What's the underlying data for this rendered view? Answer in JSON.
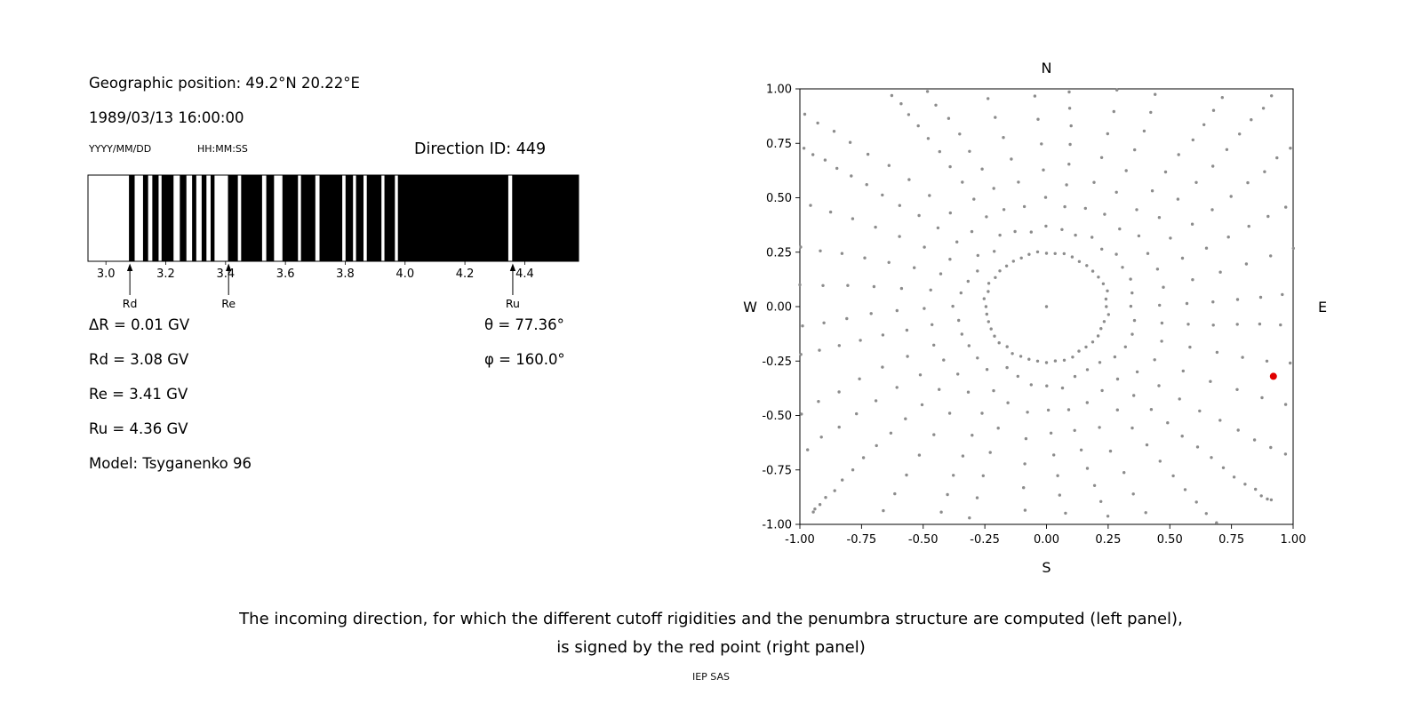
{
  "header": {
    "geographic_position": "Geographic position: 49.2°N 20.22°E",
    "datetime": "1989/03/13 16:00:00",
    "date_format_label": "YYYY/MM/DD",
    "time_format_label": "HH:MM:SS",
    "direction_id": "Direction ID: 449"
  },
  "parameters": {
    "delta_r": "ΔR = 0.01 GV",
    "rd": "Rd = 3.08 GV",
    "re": "Re = 3.41 GV",
    "ru": "Ru = 4.36 GV",
    "model": "Model: Tsyganenko 96",
    "theta": "θ = 77.36°",
    "phi": "φ = 160.0°"
  },
  "caption": {
    "line1": "The incoming direction, for which the different cutoff rigidities and the penumbra structure are computed (left panel),",
    "line2": "is signed by the red point (right panel)",
    "credit": "IEP SAS"
  },
  "chart_data": [
    {
      "type": "bar",
      "name": "penumbra",
      "description": "Penumbra structure barcode: black bands = allowed rigidities, white = forbidden",
      "x_range_gv": [
        2.94,
        4.58
      ],
      "xticks": [
        3.0,
        3.2,
        3.4,
        3.6,
        3.8,
        4.0,
        4.2,
        4.4
      ],
      "xtick_labels": [
        "3.0",
        "3.2",
        "3.4",
        "3.6",
        "3.8",
        "4.0",
        "4.2",
        "4.4"
      ],
      "allowed_bands_gv": [
        [
          3.077,
          3.096
        ],
        [
          3.124,
          3.141
        ],
        [
          3.155,
          3.176
        ],
        [
          3.186,
          3.226
        ],
        [
          3.247,
          3.269
        ],
        [
          3.288,
          3.302
        ],
        [
          3.32,
          3.336
        ],
        [
          3.35,
          3.363
        ],
        [
          3.408,
          3.441
        ],
        [
          3.452,
          3.522
        ],
        [
          3.536,
          3.562
        ],
        [
          3.59,
          3.642
        ],
        [
          3.652,
          3.7
        ],
        [
          3.714,
          3.79
        ],
        [
          3.801,
          3.826
        ],
        [
          3.836,
          3.861
        ],
        [
          3.872,
          3.921
        ],
        [
          3.931,
          3.966
        ],
        [
          3.976,
          4.345
        ],
        [
          4.358,
          4.58
        ]
      ],
      "markers": [
        {
          "label": "Rd",
          "value_gv": 3.08
        },
        {
          "label": "Re",
          "value_gv": 3.41
        },
        {
          "label": "Ru",
          "value_gv": 4.36
        }
      ],
      "delta_r_gv": 0.01,
      "band_color": "#000000",
      "background_color": "#ffffff"
    },
    {
      "type": "scatter",
      "name": "direction-map",
      "description": "Map of incoming directions; red point marks the computed direction",
      "xlim": [
        -1.0,
        1.0
      ],
      "ylim": [
        -1.0,
        1.0
      ],
      "xtick_values": [
        -1.0,
        -0.75,
        -0.5,
        -0.25,
        0.0,
        0.25,
        0.5,
        0.75,
        1.0
      ],
      "ytick_values": [
        -1.0,
        -0.75,
        -0.5,
        -0.25,
        0.0,
        0.25,
        0.5,
        0.75,
        1.0
      ],
      "xtick_labels": [
        "-1.00",
        "-0.75",
        "-0.50",
        "-0.25",
        "0.00",
        "0.25",
        "0.50",
        "0.75",
        "1.00"
      ],
      "ytick_labels": [
        "-1.00",
        "-0.75",
        "-0.50",
        "-0.25",
        "0.00",
        "0.25",
        "0.50",
        "0.75",
        "1.00"
      ],
      "compass": {
        "top": "N",
        "bottom": "S",
        "left": "W",
        "right": "E"
      },
      "grid_dots": {
        "center_dot": true,
        "ring_radius": 0.25,
        "ring_count": 44,
        "spoke_count": 36,
        "spoke_start_deg": 0,
        "spoke_step_deg": 10,
        "spoke_r_start": 0.32,
        "spoke_r_end": 1.42,
        "dots_per_spoke": 15,
        "curvature_deg": 6,
        "seed": 7,
        "dot_color": "#8c8c8c",
        "dot_radius_px": 1.7
      },
      "selected_direction": {
        "x": 0.92,
        "y": -0.32,
        "color": "#e00000",
        "radius_px": 4
      }
    }
  ]
}
